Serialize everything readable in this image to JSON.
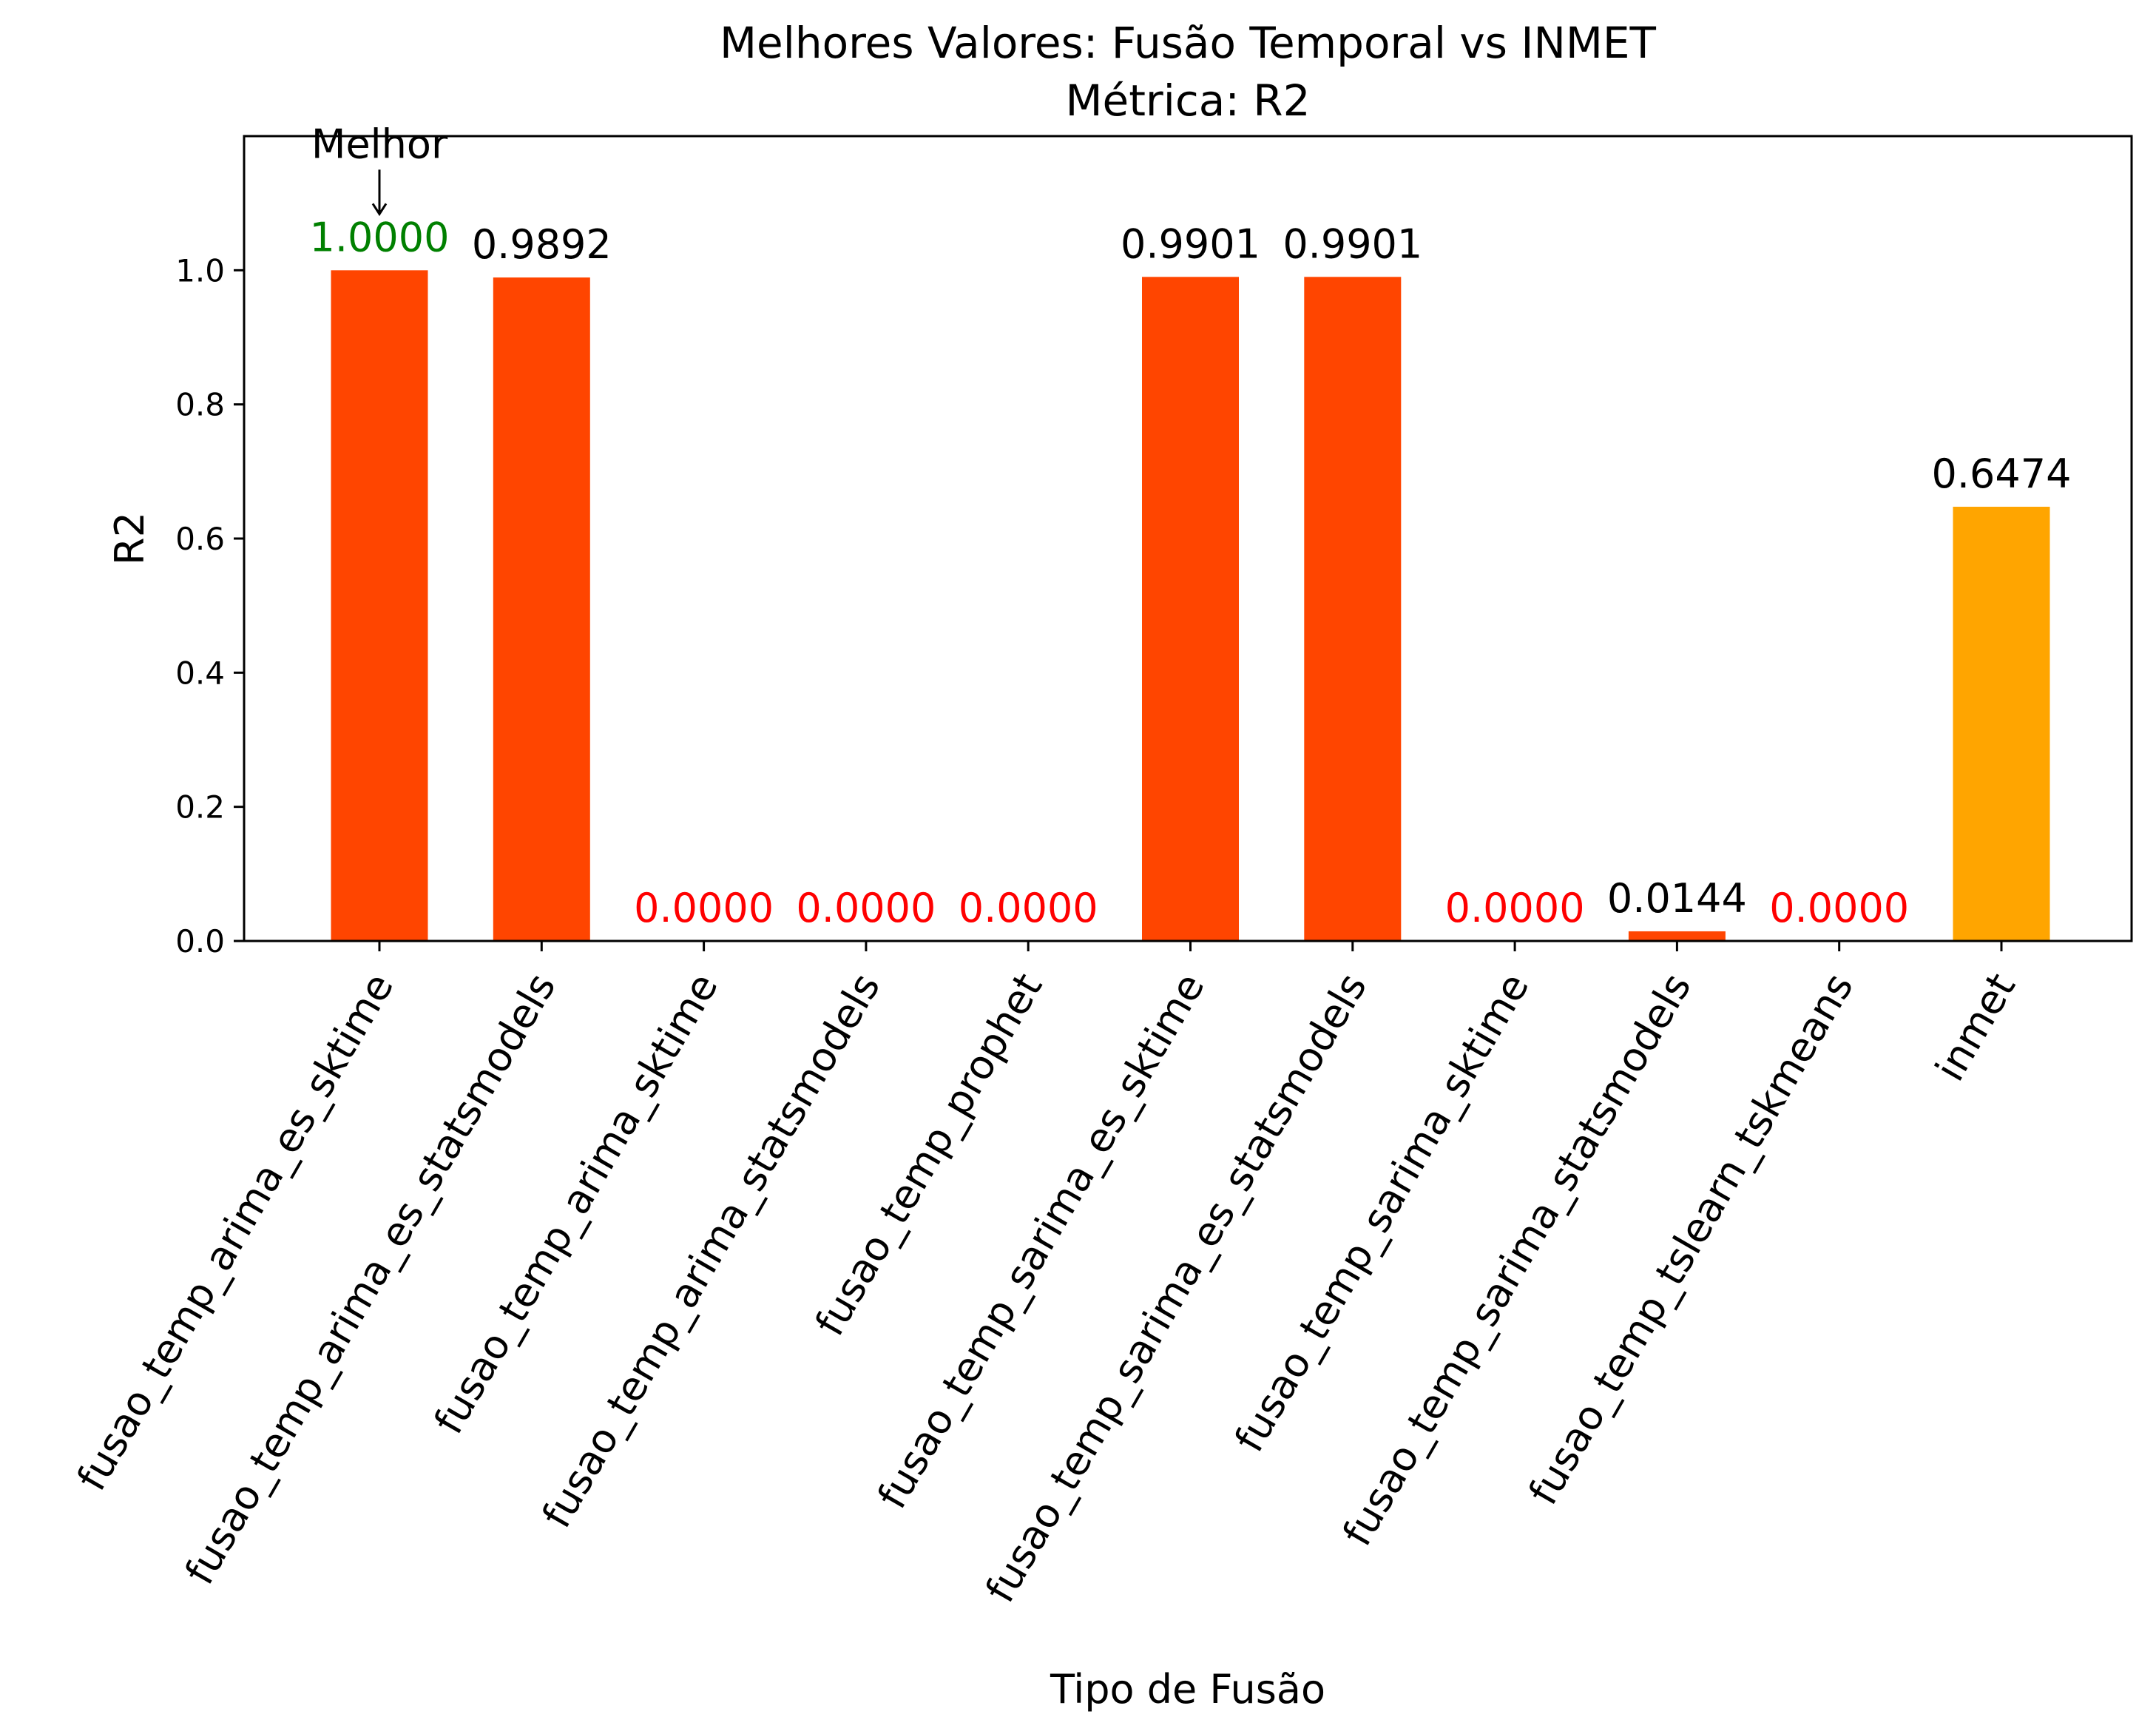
{
  "chart_data": {
    "type": "bar",
    "title": "Melhores Valores: Fusão Temporal vs INMET",
    "subtitle": "Métrica: R2",
    "xlabel": "Tipo de Fusão",
    "ylabel": "R2",
    "ylim": [
      0,
      1.2
    ],
    "yticks": [
      0.0,
      0.2,
      0.4,
      0.6,
      0.8,
      1.0
    ],
    "ytick_labels": [
      "0.0",
      "0.2",
      "0.4",
      "0.6",
      "0.8",
      "1.0"
    ],
    "categories": [
      "fusao_temp_arima_es_sktime",
      "fusao_temp_arima_es_statsmodels",
      "fusao_temp_arima_sktime",
      "fusao_temp_arima_statsmodels",
      "fusao_temp_prophet",
      "fusao_temp_sarima_es_sktime",
      "fusao_temp_sarima_es_statsmodels",
      "fusao_temp_sarima_sktime",
      "fusao_temp_sarima_statsmodels",
      "fusao_temp_tslearn_tskmeans",
      "inmet"
    ],
    "values": [
      1.0,
      0.9892,
      0.0,
      0.0,
      0.0,
      0.9901,
      0.9901,
      0.0,
      0.0144,
      0.0,
      0.6474
    ],
    "value_labels": [
      "1.0000",
      "0.9892",
      "0.0000",
      "0.0000",
      "0.0000",
      "0.9901",
      "0.9901",
      "0.0000",
      "0.0144",
      "0.0000",
      "0.6474"
    ],
    "bar_colors": [
      "#ff4500",
      "#ff4500",
      "#ff4500",
      "#ff4500",
      "#ff4500",
      "#ff4500",
      "#ff4500",
      "#ff4500",
      "#ff4500",
      "#ff4500",
      "#ffa500"
    ],
    "label_colors": [
      "#008000",
      "#000000",
      "#ff0000",
      "#ff0000",
      "#ff0000",
      "#000000",
      "#000000",
      "#ff0000",
      "#000000",
      "#ff0000",
      "#000000"
    ],
    "annotation": {
      "text": "Melhor",
      "target_index": 0
    },
    "grid": false,
    "legend": "none"
  }
}
